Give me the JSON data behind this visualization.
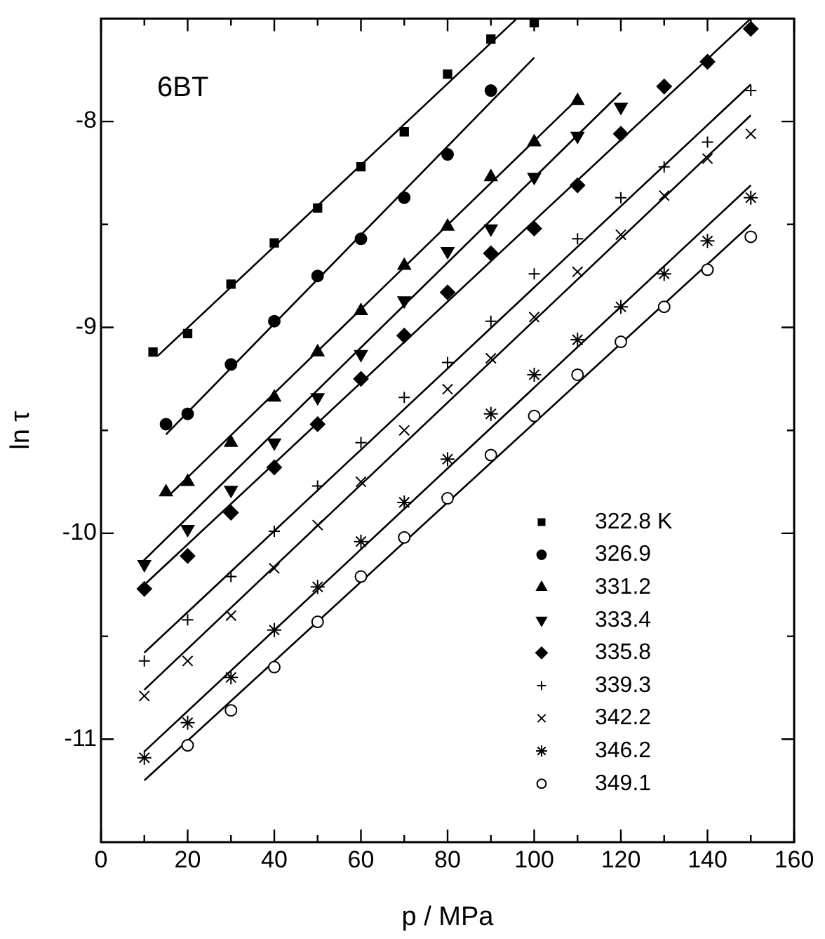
{
  "chart_data": {
    "type": "scatter",
    "xlabel": "p / MPa",
    "ylabel": "ln τ",
    "annotations": [
      "6BT"
    ],
    "xlim": [
      0,
      160
    ],
    "xticks": [
      0,
      {
        "value": 10,
        "label": null
      },
      20,
      {
        "value": 30,
        "label": null
      },
      40,
      {
        "value": 50,
        "label": null
      },
      60,
      {
        "value": 70,
        "label": null
      },
      80,
      {
        "value": 90,
        "label": null
      },
      100,
      {
        "value": 110,
        "label": null
      },
      120,
      {
        "value": 130,
        "label": null
      },
      140,
      {
        "value": 150,
        "label": null
      },
      160
    ],
    "ylim": [
      -11.5,
      -7.5
    ],
    "yticks": [
      -11,
      {
        "value": -10.5,
        "label": null
      },
      -10,
      {
        "value": -9.5,
        "label": null
      },
      -9,
      {
        "value": -8.5,
        "label": null
      },
      -8
    ],
    "grid": false,
    "legend": "bottom right",
    "line_style": "solid",
    "series": [
      {
        "name": "322.8 K",
        "color": "#000000",
        "marker": "square",
        "x": [
          12,
          20,
          30,
          40,
          50,
          60,
          70,
          80,
          90,
          100
        ],
        "values": [
          -9.12,
          -9.03,
          -8.79,
          -8.59,
          -8.42,
          -8.22,
          -8.05,
          -7.77,
          -7.6,
          -7.52
        ]
      },
      {
        "name": "326.9",
        "color": "#000000",
        "marker": "circle",
        "x": [
          15,
          20,
          30,
          40,
          50,
          60,
          70,
          80,
          90
        ],
        "values": [
          -9.47,
          -9.42,
          -9.18,
          -8.97,
          -8.75,
          -8.57,
          -8.37,
          -8.16,
          -7.85
        ]
      },
      {
        "name": "331.2",
        "color": "#000000",
        "marker": "triangle",
        "x": [
          15,
          20,
          30,
          40,
          50,
          60,
          70,
          80,
          90,
          100,
          110
        ],
        "values": [
          -9.8,
          -9.75,
          -9.56,
          -9.34,
          -9.12,
          -8.92,
          -8.7,
          -8.51,
          -8.27,
          -8.1,
          -7.9
        ]
      },
      {
        "name": "333.4",
        "color": "#000000",
        "marker": "triangle_down",
        "x": [
          10,
          20,
          30,
          40,
          50,
          60,
          70,
          80,
          90,
          100,
          110,
          120
        ],
        "values": [
          -10.15,
          -9.98,
          -9.79,
          -9.56,
          -9.34,
          -9.13,
          -8.87,
          -8.63,
          -8.52,
          -8.27,
          -8.07,
          -7.93
        ]
      },
      {
        "name": "335.8",
        "color": "#000000",
        "marker": "diamond",
        "x": [
          10,
          20,
          30,
          40,
          50,
          60,
          70,
          80,
          90,
          100,
          110,
          120,
          130,
          140,
          150
        ],
        "values": [
          -10.27,
          -10.11,
          -9.9,
          -9.68,
          -9.47,
          -9.25,
          -9.04,
          -8.83,
          -8.64,
          -8.52,
          -8.31,
          -8.06,
          -7.83,
          -7.71,
          -7.55
        ]
      },
      {
        "name": "339.3",
        "color": "#000000",
        "marker": "plus",
        "x": [
          10,
          20,
          30,
          40,
          50,
          60,
          70,
          80,
          90,
          100,
          110,
          120,
          130,
          140,
          150
        ],
        "values": [
          -10.62,
          -10.42,
          -10.21,
          -9.99,
          -9.77,
          -9.56,
          -9.34,
          -9.17,
          -8.97,
          -8.74,
          -8.57,
          -8.37,
          -8.22,
          -8.1,
          -7.85
        ]
      },
      {
        "name": "342.2",
        "color": "#000000",
        "marker": "x",
        "x": [
          10,
          20,
          30,
          40,
          50,
          60,
          70,
          80,
          90,
          100,
          110,
          120,
          130,
          140,
          150
        ],
        "values": [
          -10.79,
          -10.62,
          -10.4,
          -10.17,
          -9.96,
          -9.75,
          -9.5,
          -9.3,
          -9.15,
          -8.95,
          -8.73,
          -8.55,
          -8.36,
          -8.18,
          -8.06
        ]
      },
      {
        "name": "346.2",
        "color": "#000000",
        "marker": "cross",
        "x": [
          10,
          20,
          30,
          40,
          50,
          60,
          70,
          80,
          90,
          100,
          110,
          120,
          130,
          140,
          150
        ],
        "values": [
          -11.09,
          -10.92,
          -10.7,
          -10.47,
          -10.26,
          -10.04,
          -9.85,
          -9.64,
          -9.42,
          -9.23,
          -9.06,
          -8.9,
          -8.74,
          -8.58,
          -8.37
        ]
      },
      {
        "name": "349.1",
        "color": "#000000",
        "marker": "circle_open",
        "x": [
          20,
          30,
          40,
          50,
          60,
          70,
          80,
          90,
          100,
          110,
          120,
          130,
          140,
          150
        ],
        "values": [
          -11.03,
          -10.86,
          -10.65,
          -10.43,
          -10.21,
          -10.02,
          -9.83,
          -9.62,
          -9.43,
          -9.23,
          -9.07,
          -8.9,
          -8.72,
          -8.56
        ]
      },
      {
        "type": "line",
        "color": "#000000",
        "marker": "none",
        "x": [
          13,
          96
        ],
        "values": [
          -9.14,
          -7.5
        ]
      },
      {
        "type": "line",
        "color": "#000000",
        "marker": "none",
        "x": [
          15,
          100
        ],
        "values": [
          -9.52,
          -7.69
        ]
      },
      {
        "type": "line",
        "color": "#000000",
        "marker": "none",
        "x": [
          16,
          110
        ],
        "values": [
          -9.81,
          -7.89
        ]
      },
      {
        "type": "line",
        "color": "#000000",
        "marker": "none",
        "x": [
          9,
          120
        ],
        "values": [
          -10.15,
          -7.86
        ]
      },
      {
        "type": "line",
        "color": "#000000",
        "marker": "none",
        "x": [
          10,
          150
        ],
        "values": [
          -10.25,
          -7.5
        ]
      },
      {
        "type": "line",
        "color": "#000000",
        "marker": "none",
        "x": [
          10,
          150
        ],
        "values": [
          -10.58,
          -7.82
        ]
      },
      {
        "type": "line",
        "color": "#000000",
        "marker": "none",
        "x": [
          10,
          150
        ],
        "values": [
          -10.76,
          -7.97
        ]
      },
      {
        "type": "line",
        "color": "#000000",
        "marker": "none",
        "x": [
          10,
          150
        ],
        "values": [
          -11.06,
          -8.31
        ]
      },
      {
        "type": "line",
        "color": "#000000",
        "marker": "none",
        "x": [
          10,
          150
        ],
        "values": [
          -11.2,
          -8.5
        ]
      }
    ]
  }
}
